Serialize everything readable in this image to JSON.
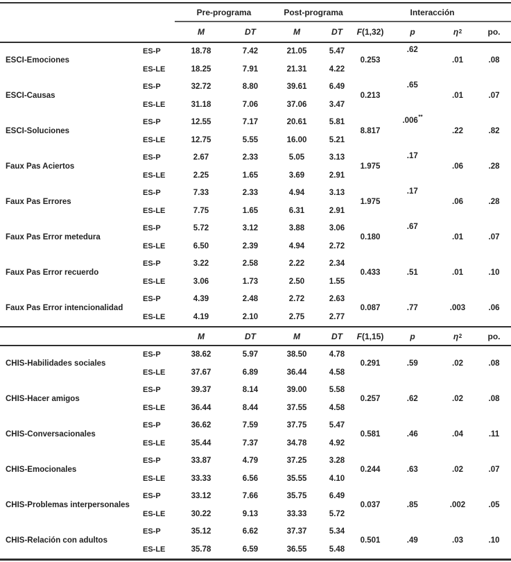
{
  "table": {
    "header": {
      "group_pre": "Pre-programa",
      "group_post": "Post-programa",
      "group_interaction": "Interacción",
      "col_m": "M",
      "col_dt": "DT",
      "col_f_base": "F",
      "col_p": "p",
      "col_eta_base": "η",
      "col_eta_sup": "2",
      "col_po": "po."
    },
    "sections": [
      {
        "f_args": "(1,32)",
        "rows": [
          {
            "variable": "ESCI-Emociones",
            "groups": [
              {
                "name": "ES-P",
                "pre_m": "18.78",
                "pre_dt": "7.42",
                "post_m": "21.05",
                "post_dt": "5.47"
              },
              {
                "name": "ES-LE",
                "pre_m": "18.25",
                "pre_dt": "7.91",
                "post_m": "21.31",
                "post_dt": "4.22"
              }
            ],
            "f": "0.253",
            "p": ".62",
            "p_sup": "",
            "p_raised": true,
            "eta2": ".01",
            "po": ".08"
          },
          {
            "variable": "ESCI-Causas",
            "groups": [
              {
                "name": "ES-P",
                "pre_m": "32.72",
                "pre_dt": "8.80",
                "post_m": "39.61",
                "post_dt": "6.49"
              },
              {
                "name": "ES-LE",
                "pre_m": "31.18",
                "pre_dt": "7.06",
                "post_m": "37.06",
                "post_dt": "3.47"
              }
            ],
            "f": "0.213",
            "p": ".65",
            "p_sup": "",
            "p_raised": true,
            "eta2": ".01",
            "po": ".07"
          },
          {
            "variable": "ESCI-Soluciones",
            "groups": [
              {
                "name": "ES-P",
                "pre_m": "12.55",
                "pre_dt": "7.17",
                "post_m": "20.61",
                "post_dt": "5.81"
              },
              {
                "name": "ES-LE",
                "pre_m": "12.75",
                "pre_dt": "5.55",
                "post_m": "16.00",
                "post_dt": "5.21"
              }
            ],
            "f": "8.817",
            "p": ".006",
            "p_sup": "**",
            "p_raised": true,
            "eta2": ".22",
            "po": ".82"
          },
          {
            "variable": "Faux Pas Aciertos",
            "groups": [
              {
                "name": "ES-P",
                "pre_m": "2.67",
                "pre_dt": "2.33",
                "post_m": "5.05",
                "post_dt": "3.13"
              },
              {
                "name": "ES-LE",
                "pre_m": "2.25",
                "pre_dt": "1.65",
                "post_m": "3.69",
                "post_dt": "2.91"
              }
            ],
            "f": "1.975",
            "p": ".17",
            "p_sup": "",
            "p_raised": true,
            "eta2": ".06",
            "po": ".28"
          },
          {
            "variable": "Faux Pas Errores",
            "groups": [
              {
                "name": "ES-P",
                "pre_m": "7.33",
                "pre_dt": "2.33",
                "post_m": "4.94",
                "post_dt": "3.13"
              },
              {
                "name": "ES-LE",
                "pre_m": "7.75",
                "pre_dt": "1.65",
                "post_m": "6.31",
                "post_dt": "2.91"
              }
            ],
            "f": "1.975",
            "p": ".17",
            "p_sup": "",
            "p_raised": true,
            "eta2": ".06",
            "po": ".28"
          },
          {
            "variable": "Faux Pas Error metedura",
            "groups": [
              {
                "name": "ES-P",
                "pre_m": "5.72",
                "pre_dt": "3.12",
                "post_m": "3.88",
                "post_dt": "3.06"
              },
              {
                "name": "ES-LE",
                "pre_m": "6.50",
                "pre_dt": "2.39",
                "post_m": "4.94",
                "post_dt": "2.72"
              }
            ],
            "f": "0.180",
            "p": ".67",
            "p_sup": "",
            "p_raised": true,
            "eta2": ".01",
            "po": ".07"
          },
          {
            "variable": "Faux Pas Error recuerdo",
            "groups": [
              {
                "name": "ES-P",
                "pre_m": "3.22",
                "pre_dt": "2.58",
                "post_m": "2.22",
                "post_dt": "2.34"
              },
              {
                "name": "ES-LE",
                "pre_m": "3.06",
                "pre_dt": "1.73",
                "post_m": "2.50",
                "post_dt": "1.55"
              }
            ],
            "f": "0.433",
            "p": ".51",
            "p_sup": "",
            "p_raised": false,
            "eta2": ".01",
            "po": ".10"
          },
          {
            "variable": "Faux Pas Error intencionalidad",
            "groups": [
              {
                "name": "ES-P",
                "pre_m": "4.39",
                "pre_dt": "2.48",
                "post_m": "2.72",
                "post_dt": "2.63"
              },
              {
                "name": "ES-LE",
                "pre_m": "4.19",
                "pre_dt": "2.10",
                "post_m": "2.75",
                "post_dt": "2.77"
              }
            ],
            "f": "0.087",
            "p": ".77",
            "p_sup": "",
            "p_raised": false,
            "eta2": ".003",
            "po": ".06"
          }
        ]
      },
      {
        "f_args": "(1,15)",
        "rows": [
          {
            "variable": "CHIS-Habilidades sociales",
            "groups": [
              {
                "name": "ES-P",
                "pre_m": "38.62",
                "pre_dt": "5.97",
                "post_m": "38.50",
                "post_dt": "4.78"
              },
              {
                "name": "ES-LE",
                "pre_m": "37.67",
                "pre_dt": "6.89",
                "post_m": "36.44",
                "post_dt": "4.58"
              }
            ],
            "f": "0.291",
            "p": ".59",
            "p_sup": "",
            "p_raised": false,
            "eta2": ".02",
            "po": ".08"
          },
          {
            "variable": "CHIS-Hacer amigos",
            "groups": [
              {
                "name": "ES-P",
                "pre_m": "39.37",
                "pre_dt": "8.14",
                "post_m": "39.00",
                "post_dt": "5.58"
              },
              {
                "name": "ES-LE",
                "pre_m": "36.44",
                "pre_dt": "8.44",
                "post_m": "37.55",
                "post_dt": "4.58"
              }
            ],
            "f": "0.257",
            "p": ".62",
            "p_sup": "",
            "p_raised": false,
            "eta2": ".02",
            "po": ".08"
          },
          {
            "variable": "CHIS-Conversacionales",
            "groups": [
              {
                "name": "ES-P",
                "pre_m": "36.62",
                "pre_dt": "7.59",
                "post_m": "37.75",
                "post_dt": "5.47"
              },
              {
                "name": "ES-LE",
                "pre_m": "35.44",
                "pre_dt": "7.37",
                "post_m": "34.78",
                "post_dt": "4.92"
              }
            ],
            "f": "0.581",
            "p": ".46",
            "p_sup": "",
            "p_raised": false,
            "eta2": ".04",
            "po": ".11"
          },
          {
            "variable": "CHIS-Emocionales",
            "groups": [
              {
                "name": "ES-P",
                "pre_m": "33.87",
                "pre_dt": "4.79",
                "post_m": "37.25",
                "post_dt": "3.28"
              },
              {
                "name": "ES-LE",
                "pre_m": "33.33",
                "pre_dt": "6.56",
                "post_m": "35.55",
                "post_dt": "4.10"
              }
            ],
            "f": "0.244",
            "p": ".63",
            "p_sup": "",
            "p_raised": false,
            "eta2": ".02",
            "po": ".07"
          },
          {
            "variable": "CHIS-Problemas interpersonales",
            "groups": [
              {
                "name": "ES-P",
                "pre_m": "33.12",
                "pre_dt": "7.66",
                "post_m": "35.75",
                "post_dt": "6.49"
              },
              {
                "name": "ES-LE",
                "pre_m": "30.22",
                "pre_dt": "9.13",
                "post_m": "33.33",
                "post_dt": "5.72"
              }
            ],
            "f": "0.037",
            "p": ".85",
            "p_sup": "",
            "p_raised": false,
            "eta2": ".002",
            "po": ".05"
          },
          {
            "variable": "CHIS-Relación con adultos",
            "groups": [
              {
                "name": "ES-P",
                "pre_m": "35.12",
                "pre_dt": "6.62",
                "post_m": "37.37",
                "post_dt": "5.34"
              },
              {
                "name": "ES-LE",
                "pre_m": "35.78",
                "pre_dt": "6.59",
                "post_m": "36.55",
                "post_dt": "5.48"
              }
            ],
            "f": "0.501",
            "p": ".49",
            "p_sup": "",
            "p_raised": false,
            "eta2": ".03",
            "po": ".10"
          }
        ]
      }
    ]
  }
}
